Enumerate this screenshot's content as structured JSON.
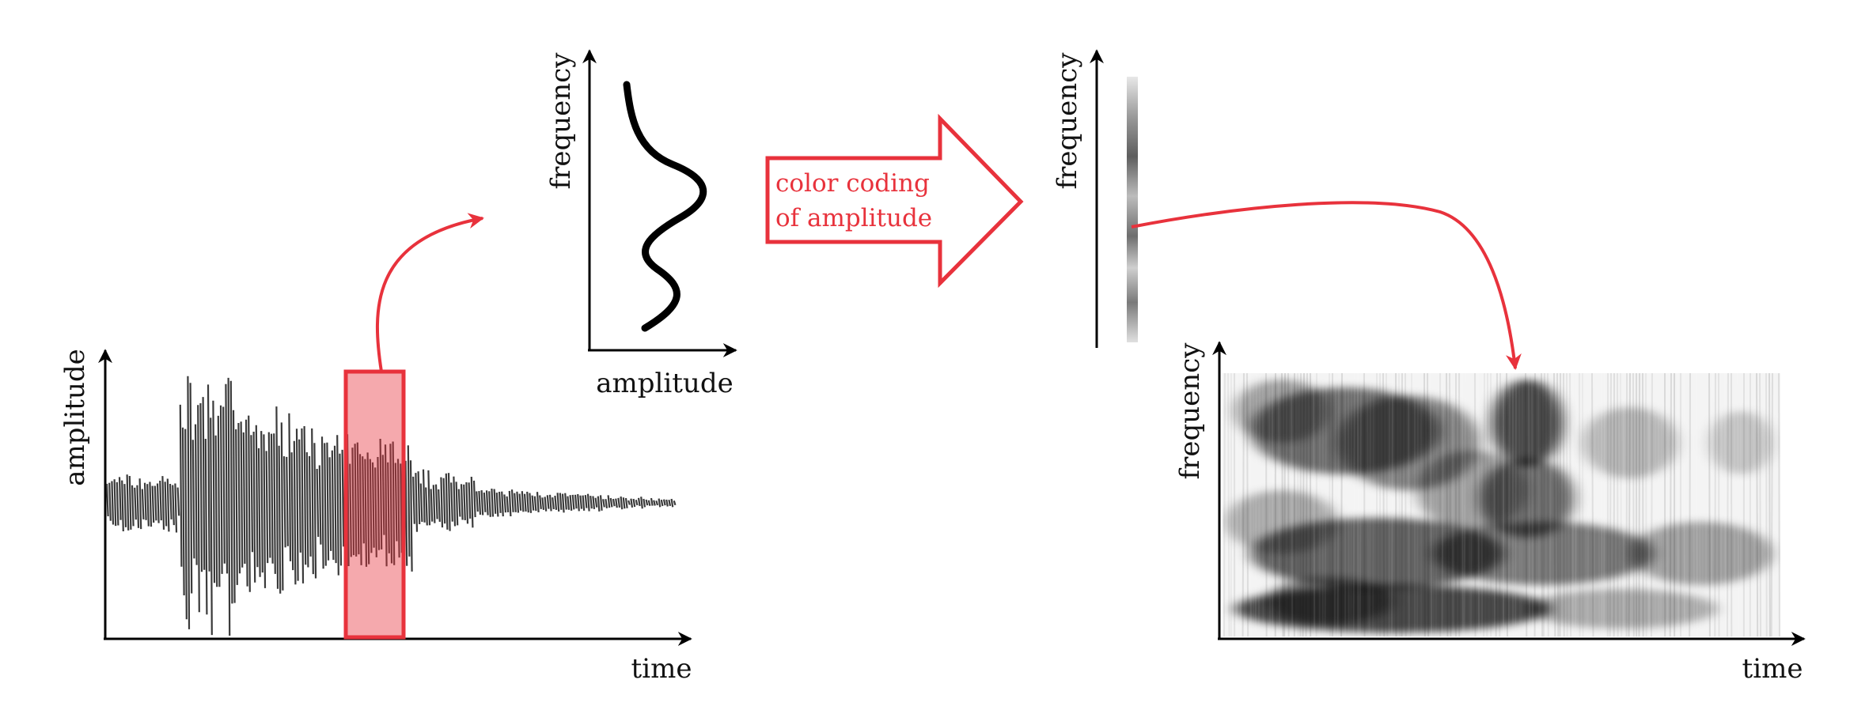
{
  "waveform_panel": {
    "y_label": "amplitude",
    "x_label": "time"
  },
  "spectrum_panel": {
    "y_label": "frequency",
    "x_label": "amplitude"
  },
  "conversion_arrow": {
    "line1": "color coding",
    "line2": "of amplitude"
  },
  "coded_strip_panel": {
    "y_label": "frequency"
  },
  "spectrogram_panel": {
    "y_label": "frequency",
    "x_label": "time"
  },
  "colors": {
    "highlight": "#e8323c",
    "ink": "#000000",
    "wave": "#3a3a3a"
  }
}
